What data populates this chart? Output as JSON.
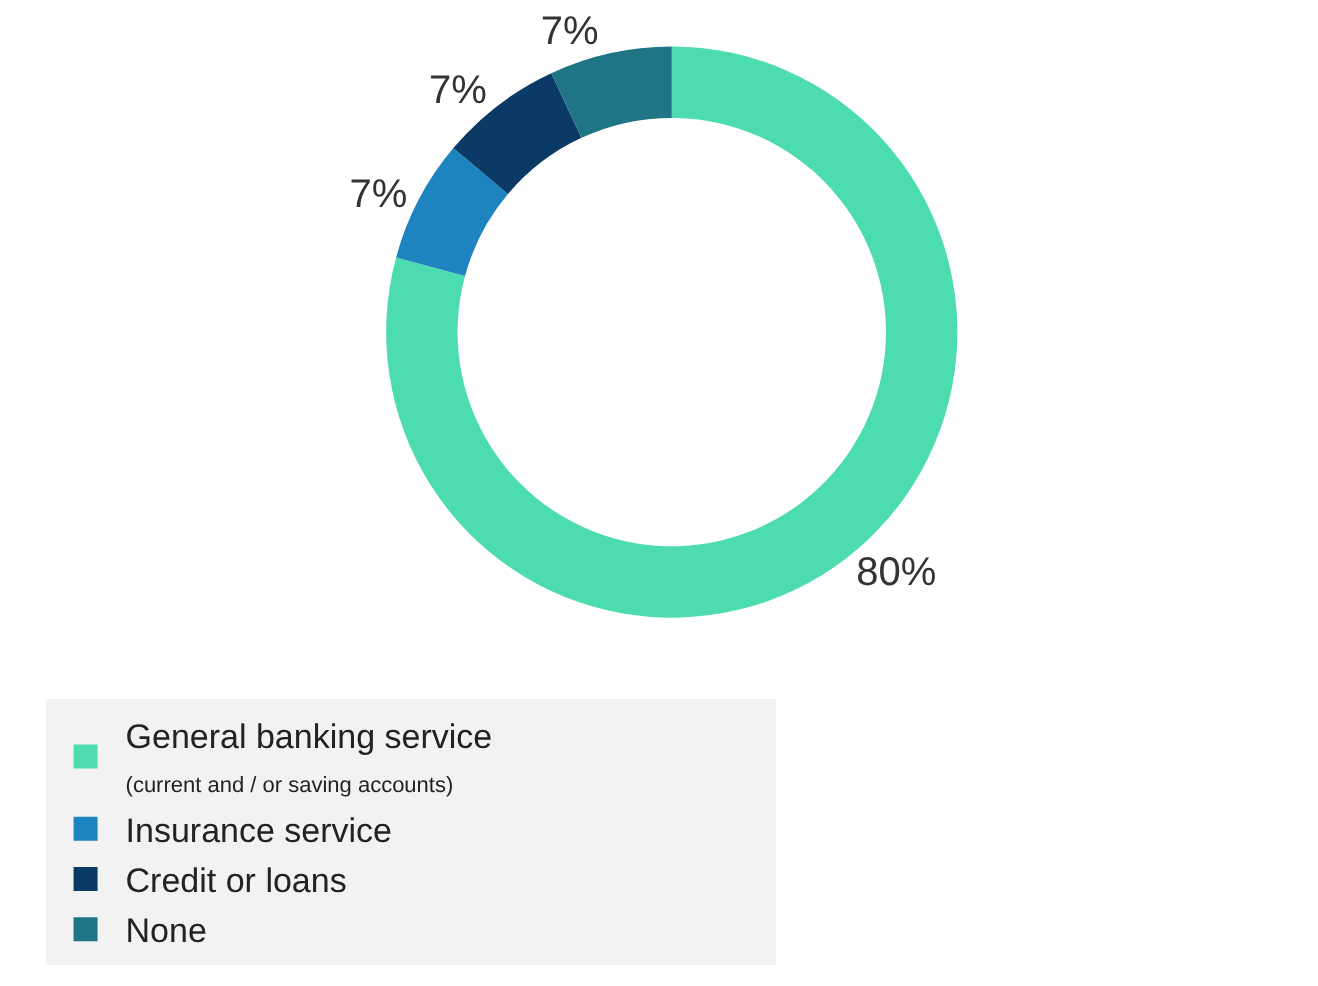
{
  "chart_data": {
    "type": "donut",
    "categories": [
      "General banking service\n(current and / or saving accounts)",
      "Insurance service",
      "Credit or loans",
      "None"
    ],
    "values": [
      80,
      7,
      7,
      7
    ],
    "colors": [
      "#4cdcb0",
      "#1e84c0",
      "#0c3a66",
      "#1f7585"
    ],
    "value_labels": [
      "80%",
      "7%",
      "7%",
      "7%"
    ],
    "legend": "bottom"
  }
}
